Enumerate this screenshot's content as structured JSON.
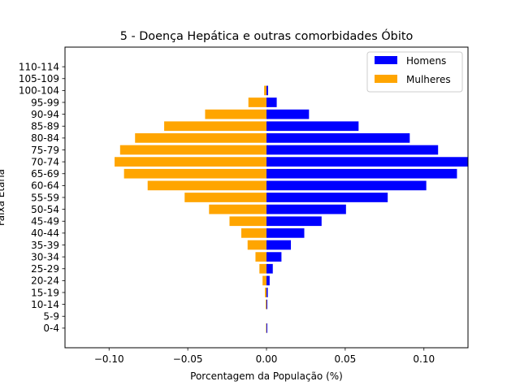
{
  "chart_data": {
    "type": "bar",
    "orientation": "horizontal",
    "title": "5 - Doença Hepática e outras comorbidades Óbito",
    "xlabel": "Porcentagem da População (%)",
    "ylabel": "Faixa Etária",
    "xlim": [
      -0.128,
      0.128
    ],
    "xticks": [
      -0.1,
      -0.05,
      0.0,
      0.05,
      0.1
    ],
    "xtick_labels": [
      "−0.10",
      "−0.05",
      "0.00",
      "0.05",
      "0.10"
    ],
    "categories": [
      "0-4",
      "5-9",
      "10-14",
      "15-19",
      "20-24",
      "25-29",
      "30-34",
      "35-39",
      "40-44",
      "45-49",
      "50-54",
      "55-59",
      "60-64",
      "65-69",
      "70-74",
      "75-79",
      "80-84",
      "85-89",
      "90-94",
      "95-99",
      "100-104",
      "105-109",
      "110-114"
    ],
    "series": [
      {
        "name": "Homens",
        "color": "#0000ff",
        "values": [
          0.0005,
          0,
          0.0005,
          0.0008,
          0.002,
          0.004,
          0.0095,
          0.0155,
          0.024,
          0.035,
          0.0505,
          0.077,
          0.1015,
          0.121,
          0.129,
          0.109,
          0.091,
          0.0585,
          0.027,
          0.0065,
          0.001,
          0,
          0
        ]
      },
      {
        "name": "Mulheres",
        "color": "#ffa500",
        "values": [
          -0.0003,
          0,
          -0.0005,
          -0.001,
          -0.0025,
          -0.0045,
          -0.007,
          -0.012,
          -0.016,
          -0.0235,
          -0.0365,
          -0.052,
          -0.0755,
          -0.0905,
          -0.0965,
          -0.093,
          -0.0835,
          -0.065,
          -0.039,
          -0.0115,
          -0.0015,
          0,
          0
        ]
      }
    ],
    "legend_position": "top-right",
    "grid": false
  }
}
